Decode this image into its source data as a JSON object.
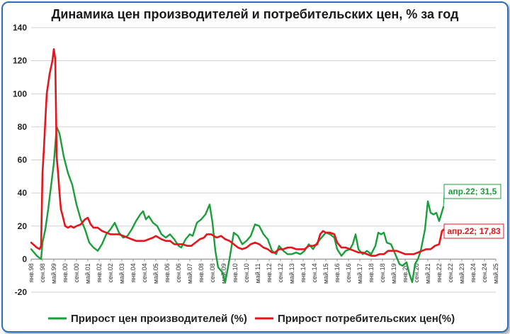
{
  "chart_data": {
    "type": "line",
    "title": "Динамика цен производителей и потребительских цен, % за год",
    "xlabel": "",
    "ylabel": "",
    "ylim": [
      -20,
      140
    ],
    "yticks": [
      -20,
      0,
      20,
      40,
      60,
      80,
      100,
      120,
      140
    ],
    "x_start": "янв.98",
    "x_end": "май.25",
    "x_tick_labels": [
      "янв.98",
      "сен.98",
      "май.99",
      "янв.00",
      "сен.00",
      "май.01",
      "янв.02",
      "сен.02",
      "май.03",
      "янв.04",
      "сен.04",
      "май.05",
      "янв.06",
      "сен.06",
      "май.07",
      "янв.08",
      "сен.08",
      "май.09",
      "янв.10",
      "сен.10",
      "май.11",
      "янв.12",
      "сен.12",
      "май.13",
      "янв.14",
      "сен.14",
      "май.15",
      "янв.16",
      "сен.16",
      "май.17",
      "янв.18",
      "сен.18",
      "май.19",
      "янв.20",
      "сен.20",
      "май.21",
      "янв.22",
      "сен.22",
      "май.23",
      "янв.24",
      "сен.24",
      "май.25"
    ],
    "grid": "horizontal",
    "legend_position": "bottom",
    "series": [
      {
        "name": "Прирост цен производителей (%)",
        "color": "#1a9e3a",
        "points": [
          [
            "янв.98",
            6
          ],
          [
            "май.98",
            2
          ],
          [
            "авг.98",
            0
          ],
          [
            "сен.98",
            10
          ],
          [
            "ноя.98",
            18
          ],
          [
            "янв.99",
            30
          ],
          [
            "май.99",
            58
          ],
          [
            "июл.99",
            80
          ],
          [
            "сен.99",
            76
          ],
          [
            "дек.99",
            62
          ],
          [
            "мар.00",
            52
          ],
          [
            "июн.00",
            45
          ],
          [
            "сен.00",
            33
          ],
          [
            "дек.00",
            24
          ],
          [
            "мар.01",
            18
          ],
          [
            "июн.01",
            10
          ],
          [
            "сен.01",
            7
          ],
          [
            "дек.01",
            5
          ],
          [
            "мар.02",
            9
          ],
          [
            "июн.02",
            15
          ],
          [
            "сен.02",
            18
          ],
          [
            "дек.02",
            22
          ],
          [
            "мар.03",
            16
          ],
          [
            "июн.03",
            13
          ],
          [
            "сен.03",
            14
          ],
          [
            "дек.03",
            18
          ],
          [
            "мар.04",
            23
          ],
          [
            "июн.04",
            27
          ],
          [
            "авг.04",
            29
          ],
          [
            "окт.04",
            24
          ],
          [
            "дек.04",
            26
          ],
          [
            "мар.05",
            22
          ],
          [
            "июн.05",
            20
          ],
          [
            "сен.05",
            15
          ],
          [
            "дек.05",
            13
          ],
          [
            "мар.06",
            15
          ],
          [
            "июн.06",
            12
          ],
          [
            "сен.06",
            8
          ],
          [
            "ноя.06",
            7
          ],
          [
            "фев.07",
            12
          ],
          [
            "май.07",
            15
          ],
          [
            "июл.07",
            14
          ],
          [
            "окт.07",
            22
          ],
          [
            "янв.08",
            24
          ],
          [
            "апр.08",
            27
          ],
          [
            "июл.08",
            33
          ],
          [
            "сен.08",
            22
          ],
          [
            "ноя.08",
            5
          ],
          [
            "янв.09",
            -5
          ],
          [
            "апр.09",
            -8
          ],
          [
            "июн.09",
            -14
          ],
          [
            "сен.09",
            0
          ],
          [
            "дек.09",
            16
          ],
          [
            "мар.10",
            14
          ],
          [
            "июн.10",
            9
          ],
          [
            "сен.10",
            11
          ],
          [
            "дек.10",
            14
          ],
          [
            "мар.11",
            21
          ],
          [
            "июн.11",
            20
          ],
          [
            "сен.11",
            15
          ],
          [
            "дек.11",
            12
          ],
          [
            "мар.12",
            5
          ],
          [
            "июн.12",
            3
          ],
          [
            "авг.12",
            8
          ],
          [
            "ноя.12",
            5
          ],
          [
            "фев.13",
            3
          ],
          [
            "май.13",
            3
          ],
          [
            "авг.13",
            4
          ],
          [
            "ноя.13",
            3
          ],
          [
            "фев.14",
            5
          ],
          [
            "май.14",
            9
          ],
          [
            "авг.14",
            6
          ],
          [
            "ноя.14",
            10
          ],
          [
            "янв.15",
            12
          ],
          [
            "мар.15",
            14
          ],
          [
            "май.15",
            16
          ],
          [
            "авг.15",
            15
          ],
          [
            "ноя.15",
            13
          ],
          [
            "янв.16",
            6
          ],
          [
            "апр.16",
            2
          ],
          [
            "июл.16",
            5
          ],
          [
            "окт.16",
            6
          ],
          [
            "дек.16",
            9
          ],
          [
            "фев.17",
            15
          ],
          [
            "апр.17",
            6
          ],
          [
            "июл.17",
            3
          ],
          [
            "окт.17",
            5
          ],
          [
            "янв.18",
            3
          ],
          [
            "апр.18",
            8
          ],
          [
            "июн.18",
            16
          ],
          [
            "авг.18",
            15
          ],
          [
            "окт.18",
            16
          ],
          [
            "дек.18",
            10
          ],
          [
            "мар.19",
            9
          ],
          [
            "июн.19",
            3
          ],
          [
            "сен.19",
            -3
          ],
          [
            "ноя.19",
            -4
          ],
          [
            "фев.20",
            -2
          ],
          [
            "апр.20",
            -9
          ],
          [
            "июн.20",
            -14
          ],
          [
            "авг.20",
            -3
          ],
          [
            "окт.20",
            0
          ],
          [
            "дек.20",
            5
          ],
          [
            "мар.21",
            18
          ],
          [
            "май.21",
            35
          ],
          [
            "июл.21",
            28
          ],
          [
            "сен.21",
            27
          ],
          [
            "ноя.21",
            28
          ],
          [
            "янв.22",
            23
          ],
          [
            "апр.22",
            31.5
          ]
        ]
      },
      {
        "name": "Прирост потребительских цен(%)",
        "color": "#e8141b",
        "points": [
          [
            "янв.98",
            10
          ],
          [
            "май.98",
            7
          ],
          [
            "июл.98",
            6
          ],
          [
            "авг.98",
            8
          ],
          [
            "сен.98",
            52
          ],
          [
            "окт.98",
            67
          ],
          [
            "ноя.98",
            84
          ],
          [
            "дек.98",
            100
          ],
          [
            "фев.99",
            112
          ],
          [
            "апр.99",
            120
          ],
          [
            "май.99",
            127
          ],
          [
            "июн.99",
            121
          ],
          [
            "июл.99",
            62
          ],
          [
            "авг.99",
            52
          ],
          [
            "сен.99",
            40
          ],
          [
            "окт.99",
            30
          ],
          [
            "ноя.99",
            27
          ],
          [
            "янв.00",
            20
          ],
          [
            "мар.00",
            19
          ],
          [
            "май.00",
            20
          ],
          [
            "июл.00",
            19
          ],
          [
            "сен.00",
            20
          ],
          [
            "дек.00",
            21
          ],
          [
            "мар.01",
            24
          ],
          [
            "май.01",
            25
          ],
          [
            "июл.01",
            21
          ],
          [
            "сен.01",
            19
          ],
          [
            "дек.01",
            19
          ],
          [
            "мар.02",
            17
          ],
          [
            "июн.02",
            16
          ],
          [
            "сен.02",
            15
          ],
          [
            "дек.02",
            15
          ],
          [
            "мар.03",
            15
          ],
          [
            "июн.03",
            14
          ],
          [
            "сен.03",
            13
          ],
          [
            "дек.03",
            12
          ],
          [
            "мар.04",
            11
          ],
          [
            "июн.04",
            11
          ],
          [
            "сен.04",
            11
          ],
          [
            "дек.04",
            12
          ],
          [
            "мар.05",
            13
          ],
          [
            "май.05",
            14
          ],
          [
            "сен.05",
            12
          ],
          [
            "дек.05",
            11
          ],
          [
            "мар.06",
            11
          ],
          [
            "июн.06",
            9
          ],
          [
            "сен.06",
            9
          ],
          [
            "дек.06",
            9
          ],
          [
            "мар.07",
            8
          ],
          [
            "июн.07",
            8
          ],
          [
            "сен.07",
            10
          ],
          [
            "дек.07",
            12
          ],
          [
            "мар.08",
            13
          ],
          [
            "май.08",
            15
          ],
          [
            "авг.08",
            15
          ],
          [
            "окт.08",
            14
          ],
          [
            "дек.08",
            13
          ],
          [
            "мар.09",
            14
          ],
          [
            "июн.09",
            12
          ],
          [
            "сен.09",
            11
          ],
          [
            "дек.09",
            9
          ],
          [
            "мар.10",
            7
          ],
          [
            "июн.10",
            6
          ],
          [
            "сен.10",
            7
          ],
          [
            "дек.10",
            9
          ],
          [
            "мар.11",
            10
          ],
          [
            "июн.11",
            9
          ],
          [
            "сен.11",
            7
          ],
          [
            "дек.11",
            6
          ],
          [
            "мар.12",
            4
          ],
          [
            "май.12",
            4
          ],
          [
            "авг.12",
            6
          ],
          [
            "ноя.12",
            6
          ],
          [
            "фев.13",
            7
          ],
          [
            "май.13",
            7
          ],
          [
            "авг.13",
            6
          ],
          [
            "ноя.13",
            6
          ],
          [
            "фев.14",
            6
          ],
          [
            "май.14",
            8
          ],
          [
            "авг.14",
            8
          ],
          [
            "ноя.14",
            9
          ],
          [
            "янв.15",
            15
          ],
          [
            "мар.15",
            17
          ],
          [
            "май.15",
            16
          ],
          [
            "авг.15",
            16
          ],
          [
            "ноя.15",
            15
          ],
          [
            "янв.16",
            10
          ],
          [
            "апр.16",
            7
          ],
          [
            "июл.16",
            7
          ],
          [
            "окт.16",
            6
          ],
          [
            "янв.17",
            5
          ],
          [
            "апр.17",
            4
          ],
          [
            "июл.17",
            4
          ],
          [
            "окт.17",
            3
          ],
          [
            "янв.18",
            2
          ],
          [
            "апр.18",
            2
          ],
          [
            "июл.18",
            3
          ],
          [
            "окт.18",
            3
          ],
          [
            "янв.19",
            5
          ],
          [
            "апр.19",
            5
          ],
          [
            "июл.19",
            5
          ],
          [
            "окт.19",
            4
          ],
          [
            "янв.20",
            3
          ],
          [
            "апр.20",
            3
          ],
          [
            "июл.20",
            3
          ],
          [
            "окт.20",
            4
          ],
          [
            "янв.21",
            5
          ],
          [
            "апр.21",
            6
          ],
          [
            "июл.21",
            6
          ],
          [
            "окт.21",
            8
          ],
          [
            "янв.22",
            9
          ],
          [
            "мар.22",
            17
          ],
          [
            "апр.22",
            17.83
          ]
        ]
      }
    ],
    "annotations": [
      {
        "text": "апр.22; 31,5",
        "series": 0,
        "x": "апр.22",
        "y": 31.5,
        "color": "#1a9e3a"
      },
      {
        "text": "апр.22; 17,83",
        "series": 1,
        "x": "апр.22",
        "y": 17.83,
        "color": "#e8141b"
      }
    ]
  }
}
